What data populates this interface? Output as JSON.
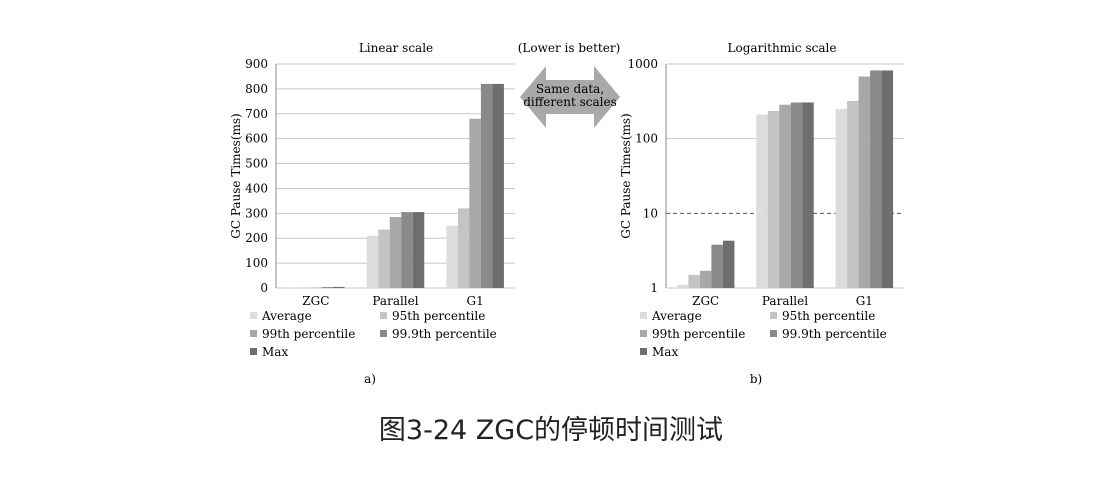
{
  "header": {
    "note": "(Lower is better)",
    "arrow_text_line1": "Same data,",
    "arrow_text_line2": "different scales"
  },
  "caption": "图3-24 ZGC的停顿时间测试",
  "colors": {
    "Average": "#dcdcdc",
    "95th percentile": "#c4c4c4",
    "99th percentile": "#a8a8a8",
    "99.9th percentile": "#8a8a8a",
    "Max": "#6e6e6e",
    "arrow": "#a9a9a9",
    "grid": "#c8c8c8"
  },
  "chart_data": [
    {
      "type": "bar",
      "title": "Linear scale",
      "ylabel": "GC Pause Times(ms)",
      "xlabel": "",
      "categories": [
        "ZGC",
        "Parallel",
        "G1"
      ],
      "ylim": [
        0,
        900
      ],
      "yscale": "linear",
      "yticks": [
        0,
        100,
        200,
        300,
        400,
        500,
        600,
        700,
        800,
        900
      ],
      "ytick_labels": [
        "0",
        "100",
        "200",
        "300",
        "400",
        "500",
        "600",
        "700",
        "800",
        "900"
      ],
      "grid": true,
      "legend": "bottom",
      "panel_label": "a)",
      "series": [
        {
          "name": "Average",
          "values": [
            1.1,
            210,
            250
          ]
        },
        {
          "name": "95th percentile",
          "values": [
            1.5,
            235,
            320
          ]
        },
        {
          "name": "99th percentile",
          "values": [
            1.7,
            285,
            680
          ]
        },
        {
          "name": "99.9th percentile",
          "values": [
            3.8,
            305,
            820
          ]
        },
        {
          "name": "Max",
          "values": [
            4.3,
            305,
            820
          ]
        }
      ]
    },
    {
      "type": "bar",
      "title": "Logarithmic scale",
      "ylabel": "GC Pause Times(ms)",
      "xlabel": "",
      "categories": [
        "ZGC",
        "Parallel",
        "G1"
      ],
      "ylim": [
        1,
        1000
      ],
      "yscale": "log",
      "yticks": [
        1,
        10,
        100,
        1000
      ],
      "ytick_labels": [
        "1",
        "10",
        "100",
        "1000"
      ],
      "grid": true,
      "dashed_line_at": 10,
      "legend": "bottom",
      "panel_label": "b)",
      "series": [
        {
          "name": "Average",
          "values": [
            1.1,
            210,
            250
          ]
        },
        {
          "name": "95th percentile",
          "values": [
            1.5,
            235,
            320
          ]
        },
        {
          "name": "99th percentile",
          "values": [
            1.7,
            285,
            680
          ]
        },
        {
          "name": "99.9th percentile",
          "values": [
            3.8,
            305,
            820
          ]
        },
        {
          "name": "Max",
          "values": [
            4.3,
            305,
            820
          ]
        }
      ]
    }
  ]
}
